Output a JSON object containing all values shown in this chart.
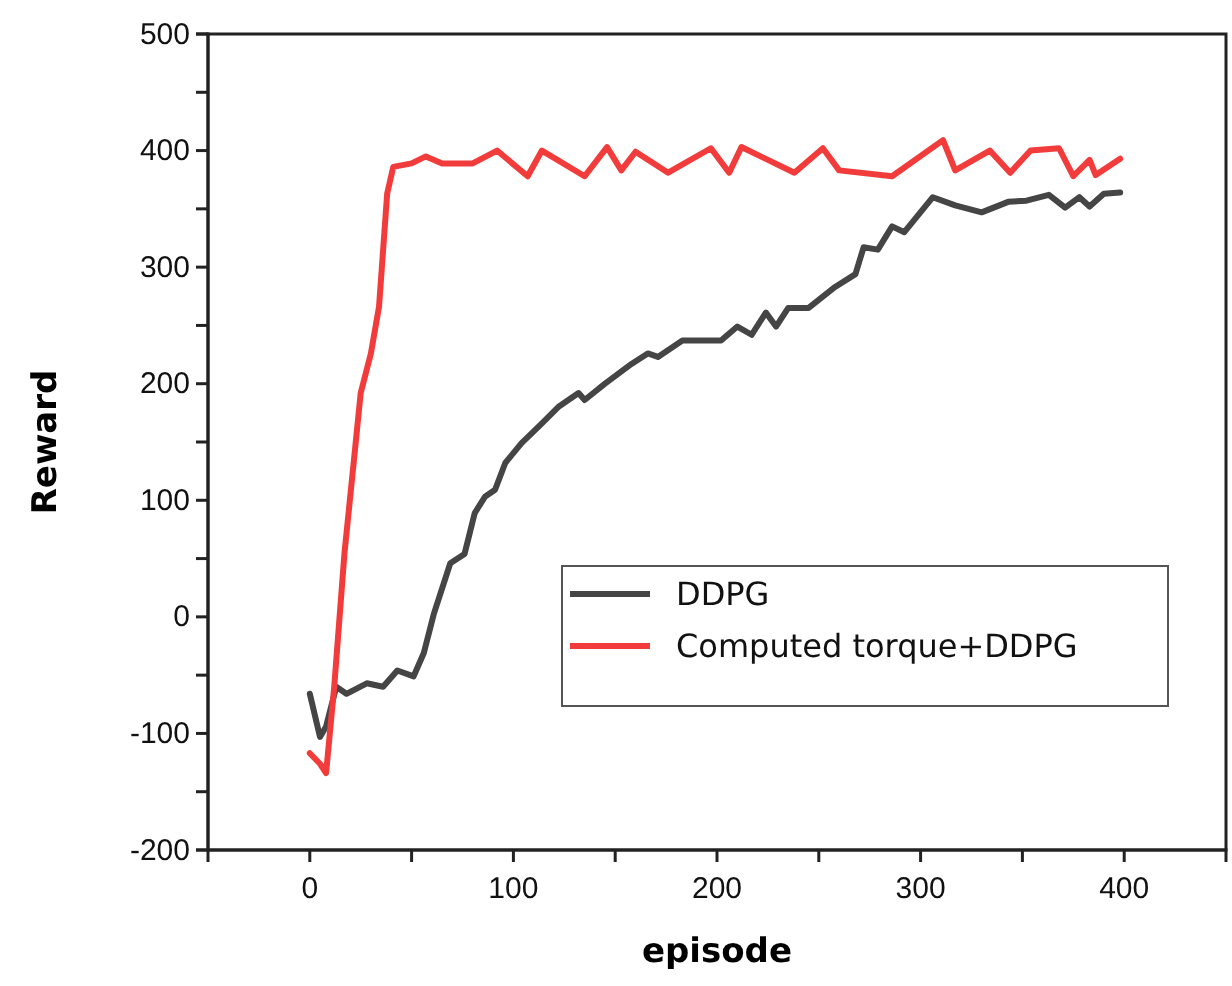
{
  "chart_data": {
    "type": "line",
    "xlabel": "episode",
    "ylabel": "Reward",
    "xlim": [
      -50,
      450
    ],
    "xticks": [
      0,
      {
        "value": 50,
        "label": null
      },
      100,
      {
        "value": 150,
        "label": null
      },
      200,
      {
        "value": 250,
        "label": null
      },
      300,
      {
        "value": 350,
        "label": null
      },
      400
    ],
    "ylim": [
      -200,
      500
    ],
    "yticks": [
      -200,
      {
        "value": -150,
        "label": null
      },
      -100,
      {
        "value": -50,
        "label": null
      },
      0,
      {
        "value": 50,
        "label": null
      },
      100,
      {
        "value": 150,
        "label": null
      },
      200,
      {
        "value": 250,
        "label": null
      },
      300,
      {
        "value": 350,
        "label": null
      },
      400,
      {
        "value": 450,
        "label": null
      },
      500
    ],
    "grid": false,
    "legend": "right",
    "line_style": "solid",
    "marker": "none",
    "series": [
      {
        "name": "DDPG",
        "color": "#454545",
        "x": [
          0,
          5,
          8,
          13,
          18,
          28,
          36,
          43,
          51,
          56,
          61,
          69,
          76,
          81,
          86,
          91,
          96,
          104,
          114,
          122,
          132,
          135,
          145,
          158,
          166,
          171,
          183,
          202,
          210,
          217,
          224,
          229,
          235,
          245,
          258,
          268,
          272,
          279,
          286,
          292,
          306,
          317,
          330,
          343,
          352,
          363,
          371,
          378,
          383,
          390,
          398
        ],
        "values": [
          -66,
          -103,
          -94,
          -60,
          -66,
          -57,
          -60,
          -46,
          -51,
          -31,
          3,
          46,
          54,
          89,
          103,
          109,
          132,
          149,
          166,
          180,
          192,
          186,
          200,
          217,
          226,
          223,
          237,
          237,
          249,
          242,
          261,
          249,
          265,
          265,
          283,
          294,
          317,
          315,
          335,
          330,
          360,
          353,
          347,
          356,
          357,
          362,
          351,
          360,
          352,
          363,
          364
        ]
      },
      {
        "name": "Computed torque+DDPG",
        "color": "#f23c3c",
        "x": [
          0,
          5,
          8,
          12,
          17,
          22,
          25,
          30,
          34,
          38,
          41,
          50,
          57,
          65,
          80,
          92,
          107,
          114,
          135,
          146,
          153,
          160,
          176,
          197,
          206,
          212,
          238,
          252,
          260,
          286,
          311,
          317,
          334,
          344,
          354,
          368,
          375,
          383,
          386,
          398
        ],
        "values": [
          -117,
          -126,
          -134,
          -60,
          54,
          140,
          192,
          226,
          266,
          363,
          386,
          389,
          395,
          389,
          389,
          400,
          378,
          400,
          378,
          403,
          383,
          399,
          381,
          402,
          381,
          403,
          381,
          402,
          383,
          378,
          409,
          383,
          400,
          381,
          400,
          402,
          378,
          392,
          379,
          393
        ]
      }
    ]
  }
}
